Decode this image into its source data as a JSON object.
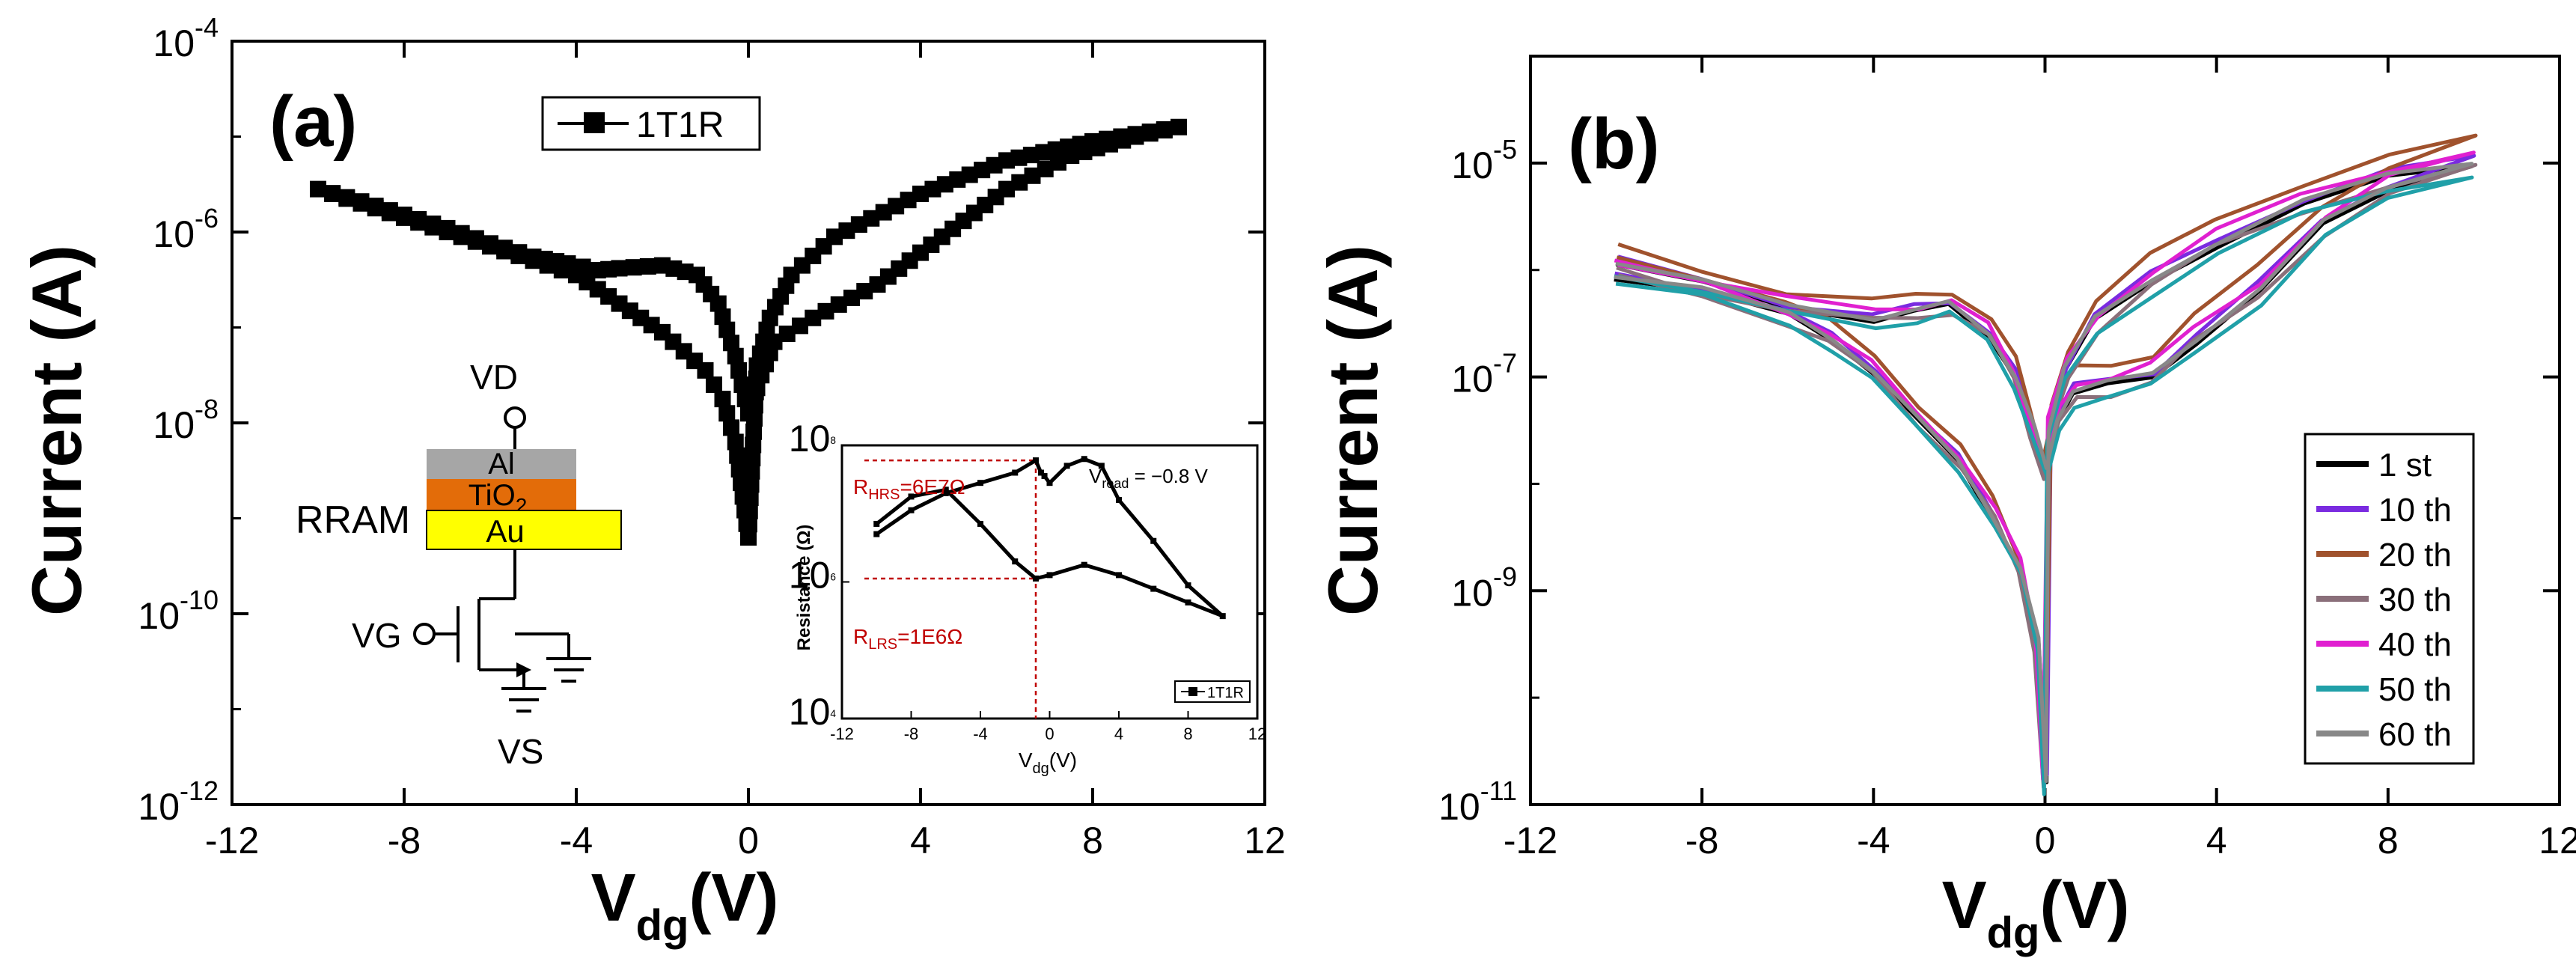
{
  "chart_data": [
    {
      "type": "line",
      "panel_label": "(a)",
      "xlabel_main": "V",
      "xlabel_sub": "dg",
      "xlabel_unit": "(V)",
      "ylabel": "Current (A)",
      "xlim": [
        -12,
        12
      ],
      "ylim_log10": [
        -12,
        -4
      ],
      "x_ticks": [
        "-12",
        "-8",
        "-4",
        "0",
        "4",
        "8",
        "12"
      ],
      "y_ticks": [
        {
          "base": "10",
          "exp": "-4"
        },
        {
          "base": "10",
          "exp": "-6"
        },
        {
          "base": "10",
          "exp": "-8"
        },
        {
          "base": "10",
          "exp": "-10"
        },
        {
          "base": "10",
          "exp": "-12"
        }
      ],
      "legend": [
        "1T1R"
      ],
      "series": [
        {
          "name": "1T1R",
          "marker": "square",
          "points": [
            [
              -10,
              -5.55
            ],
            [
              -9,
              -5.68
            ],
            [
              -8,
              -5.82
            ],
            [
              -7,
              -5.96
            ],
            [
              -6,
              -6.12
            ],
            [
              -5,
              -6.26
            ],
            [
              -4.2,
              -6.33
            ],
            [
              -3.5,
              -6.4
            ],
            [
              -3,
              -6.38
            ],
            [
              -2,
              -6.35
            ],
            [
              -1.2,
              -6.45
            ],
            [
              -0.7,
              -6.75
            ],
            [
              -0.3,
              -7.3
            ],
            [
              0,
              -7.9
            ],
            [
              0.3,
              -7.5
            ],
            [
              0.6,
              -7.15
            ],
            [
              1.5,
              -6.9
            ],
            [
              3,
              -6.55
            ],
            [
              4.5,
              -6.05
            ],
            [
              6,
              -5.55
            ],
            [
              7.5,
              -5.2
            ],
            [
              9,
              -5.0
            ],
            [
              10,
              -4.9
            ],
            [
              8,
              -5.05
            ],
            [
              6,
              -5.25
            ],
            [
              4,
              -5.6
            ],
            [
              2,
              -6.05
            ],
            [
              1,
              -6.45
            ],
            [
              0.5,
              -6.9
            ],
            [
              0.2,
              -7.4
            ],
            [
              0,
              -9.2
            ],
            [
              -0.3,
              -8.2
            ],
            [
              -0.6,
              -7.75
            ],
            [
              -1,
              -7.45
            ],
            [
              -2,
              -7.05
            ],
            [
              -3,
              -6.75
            ],
            [
              -4,
              -6.45
            ],
            [
              -5,
              -6.3
            ],
            [
              -6,
              -6.15
            ],
            [
              -7,
              -6.0
            ],
            [
              -8,
              -5.85
            ],
            [
              -9,
              -5.7
            ],
            [
              -10,
              -5.55
            ]
          ]
        }
      ],
      "circuit": {
        "vd_label": "VD",
        "al_label": "Al",
        "tio2_label": "TiO",
        "tio2_sub": "2",
        "au_label": "Au",
        "rram_label": "RRAM",
        "vg_label": "VG",
        "vs_label": "VS"
      },
      "inset": {
        "xlabel_main": "V",
        "xlabel_sub": "dg",
        "xlabel_unit": "(V)",
        "ylabel": "Resistance (Ω)",
        "xlim": [
          -12,
          12
        ],
        "ylim_log10": [
          4,
          8
        ],
        "x_ticks": [
          "-12",
          "-8",
          "-4",
          "0",
          "4",
          "8",
          "12"
        ],
        "y_ticks": [
          {
            "base": "10",
            "exp": "8"
          },
          {
            "base": "10",
            "exp": "6"
          },
          {
            "base": "10",
            "exp": "4"
          }
        ],
        "vread_label": "V",
        "vread_sub": "read",
        "vread_value": " = −0.8 V",
        "hrs_label": "R",
        "hrs_sub": "HRS",
        "hrs_value": "=6E7Ω",
        "lrs_label": "R",
        "lrs_sub": "LRS",
        "lrs_value": "=1E6Ω",
        "legend": [
          "1T1R"
        ],
        "series": [
          {
            "name": "1T1R",
            "points": [
              [
                -10,
                6.7
              ],
              [
                -8,
                7.05
              ],
              [
                -6,
                7.3
              ],
              [
                -4,
                7.45
              ],
              [
                -2,
                7.6
              ],
              [
                -0.8,
                7.78
              ],
              [
                -0.5,
                7.6
              ],
              [
                -0.3,
                7.55
              ],
              [
                0,
                7.45
              ],
              [
                1,
                7.7
              ],
              [
                2,
                7.8
              ],
              [
                3,
                7.7
              ],
              [
                4,
                7.2
              ],
              [
                6,
                6.6
              ],
              [
                8,
                5.95
              ],
              [
                10,
                5.5
              ],
              [
                8,
                5.7
              ],
              [
                6,
                5.9
              ],
              [
                4,
                6.1
              ],
              [
                2,
                6.25
              ],
              [
                0,
                6.1
              ],
              [
                -0.8,
                6.05
              ],
              [
                -2,
                6.3
              ],
              [
                -4,
                6.85
              ],
              [
                -6,
                7.35
              ],
              [
                -8,
                7.25
              ],
              [
                -10,
                6.85
              ]
            ]
          }
        ]
      }
    },
    {
      "type": "line",
      "panel_label": "(b)",
      "xlabel_main": "V",
      "xlabel_sub": "dg",
      "xlabel_unit": "(V)",
      "ylabel": "Current (A)",
      "xlim": [
        -12,
        12
      ],
      "ylim_log10": [
        -11,
        -4
      ],
      "x_ticks": [
        "-12",
        "-8",
        "-4",
        "0",
        "4",
        "8",
        "12"
      ],
      "y_ticks": [
        {
          "base": "10",
          "exp": "-5"
        },
        {
          "base": "10",
          "exp": "-7"
        },
        {
          "base": "10",
          "exp": "-9"
        },
        {
          "base": "10",
          "exp": "-11"
        }
      ],
      "legend": [
        "1 st",
        "10 th",
        "20 th",
        "30 th",
        "40 th",
        "50 th",
        "60 th"
      ],
      "series": [
        {
          "name": "1 st",
          "color": "#000000",
          "offset": 0.0
        },
        {
          "name": "10 th",
          "color": "#7a2be0",
          "offset": 0.06
        },
        {
          "name": "20 th",
          "color": "#a0522d",
          "offset": 0.22
        },
        {
          "name": "30 th",
          "color": "#8a6f7a",
          "offset": -0.05
        },
        {
          "name": "40 th",
          "color": "#e020d0",
          "offset": 0.1
        },
        {
          "name": "50 th",
          "color": "#20a0a8",
          "offset": -0.1
        },
        {
          "name": "60 th",
          "color": "#888888",
          "offset": 0.03
        }
      ],
      "curve_template": [
        [
          -10,
          -5.95
        ],
        [
          -8,
          -6.15
        ],
        [
          -6,
          -6.35
        ],
        [
          -4,
          -6.45
        ],
        [
          -3,
          -6.4
        ],
        [
          -2.2,
          -6.35
        ],
        [
          -1.3,
          -6.6
        ],
        [
          -0.7,
          -7.0
        ],
        [
          -0.3,
          -7.5
        ],
        [
          0,
          -7.9
        ],
        [
          0.3,
          -7.4
        ],
        [
          0.7,
          -7.15
        ],
        [
          1.5,
          -7.1
        ],
        [
          2.5,
          -7.0
        ],
        [
          3.5,
          -6.65
        ],
        [
          5,
          -6.2
        ],
        [
          6.5,
          -5.6
        ],
        [
          8,
          -5.25
        ],
        [
          10,
          -5.0
        ],
        [
          8,
          -5.15
        ],
        [
          6,
          -5.4
        ],
        [
          4,
          -5.75
        ],
        [
          2.5,
          -6.1
        ],
        [
          1.2,
          -6.5
        ],
        [
          0.5,
          -6.95
        ],
        [
          0.1,
          -7.5
        ],
        [
          0,
          -10.8
        ],
        [
          -0.2,
          -9.5
        ],
        [
          -0.6,
          -8.8
        ],
        [
          -1.2,
          -8.3
        ],
        [
          -2,
          -7.8
        ],
        [
          -3,
          -7.4
        ],
        [
          -4,
          -6.95
        ],
        [
          -5,
          -6.65
        ],
        [
          -6,
          -6.45
        ],
        [
          -8,
          -6.2
        ],
        [
          -10,
          -6.05
        ]
      ]
    }
  ]
}
